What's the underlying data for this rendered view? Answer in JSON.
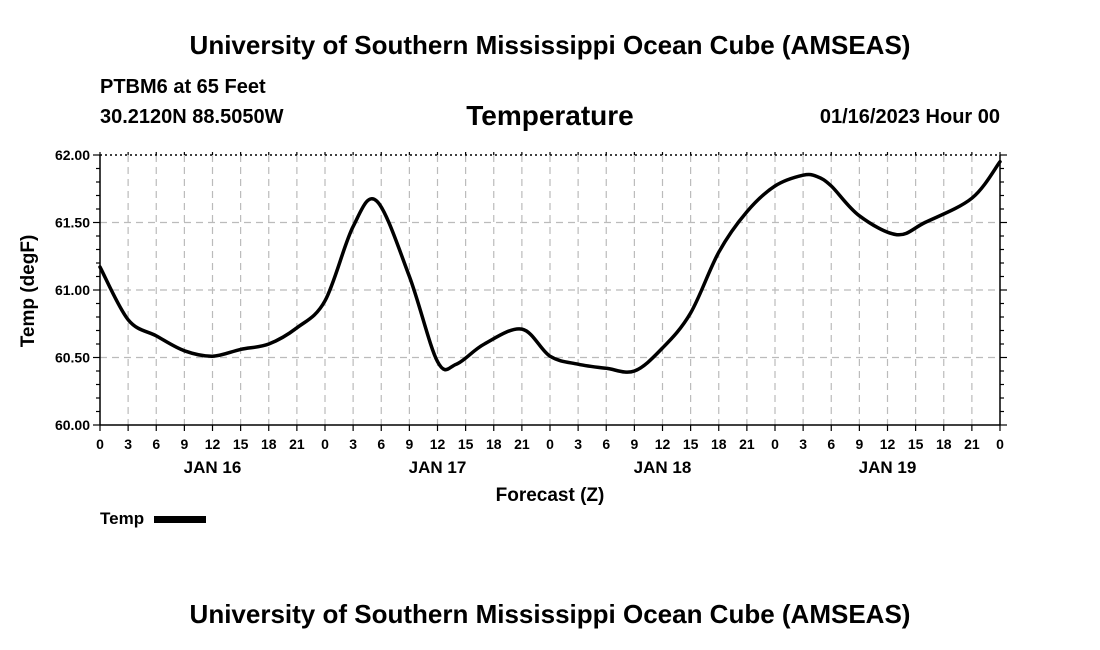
{
  "header": {
    "title": "University of Southern Mississippi Ocean Cube (AMSEAS)",
    "station": "PTBM6 at 65 Feet",
    "coords": "30.2120N  88.5050W",
    "chart_title": "Temperature",
    "run_time": "01/16/2023 Hour 00"
  },
  "footer": {
    "title": "University of Southern Mississippi Ocean Cube (AMSEAS)"
  },
  "legend": {
    "label": "Temp",
    "color": "#000000"
  },
  "chart_data": {
    "type": "line",
    "title": "Temperature",
    "xlabel": "Forecast (Z)",
    "ylabel": "Temp (degF)",
    "xlim": [
      0,
      96
    ],
    "ylim": [
      60.0,
      62.0
    ],
    "yticks": [
      "60.00",
      "60.50",
      "61.00",
      "61.50",
      "62.00"
    ],
    "ytick_values": [
      60.0,
      60.5,
      61.0,
      61.5,
      62.0
    ],
    "xtick_labels": [
      "0",
      "3",
      "6",
      "9",
      "12",
      "15",
      "18",
      "21",
      "0",
      "3",
      "6",
      "9",
      "12",
      "15",
      "18",
      "21",
      "0",
      "3",
      "6",
      "9",
      "12",
      "15",
      "18",
      "21",
      "0",
      "3",
      "6",
      "9",
      "12",
      "15",
      "18",
      "21",
      "0"
    ],
    "day_labels": [
      {
        "label": "JAN 16",
        "hour": 12
      },
      {
        "label": "JAN 17",
        "hour": 36
      },
      {
        "label": "JAN 18",
        "hour": 60
      },
      {
        "label": "JAN 19",
        "hour": 84
      }
    ],
    "grid": true,
    "series": [
      {
        "name": "Temp",
        "x": [
          0,
          3,
          6,
          9,
          12,
          15,
          18,
          21,
          24,
          27,
          29.5,
          33,
          36,
          38,
          41,
          45,
          48,
          51,
          54,
          57,
          60,
          63,
          66,
          69,
          72,
          75,
          76.5,
          78,
          81,
          85,
          88,
          93,
          96
        ],
        "y": [
          61.17,
          60.78,
          60.66,
          60.55,
          60.51,
          60.56,
          60.6,
          60.72,
          60.92,
          61.47,
          61.66,
          61.1,
          60.47,
          60.45,
          60.6,
          60.71,
          60.51,
          60.45,
          60.42,
          60.4,
          60.57,
          60.83,
          61.28,
          61.58,
          61.77,
          61.85,
          61.84,
          61.77,
          61.55,
          61.41,
          61.5,
          61.68,
          61.95
        ]
      }
    ]
  }
}
